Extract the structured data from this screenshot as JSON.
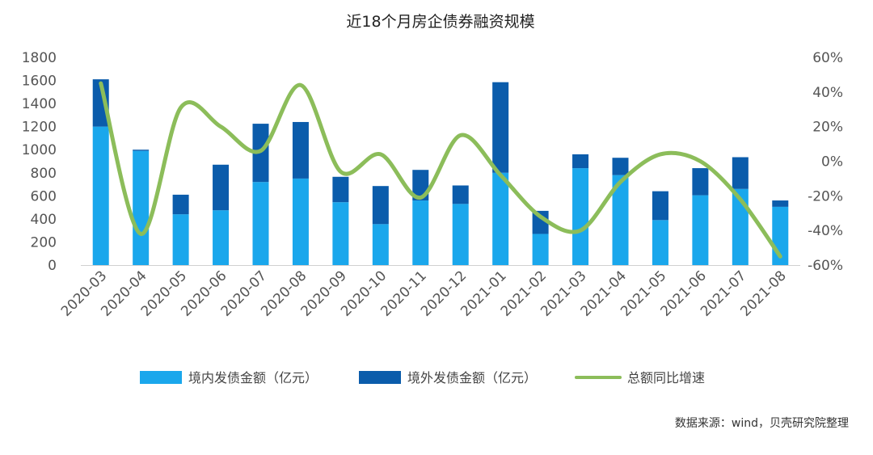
{
  "chart_data": {
    "type": "bar",
    "title": "近18个月房企债券融资规模",
    "categories": [
      "2020-03",
      "2020-04",
      "2020-05",
      "2020-06",
      "2020-07",
      "2020-08",
      "2020-09",
      "2020-10",
      "2020-11",
      "2020-12",
      "2021-01",
      "2021-02",
      "2021-03",
      "2021-04",
      "2021-05",
      "2021-06",
      "2021-07",
      "2021-08"
    ],
    "series": [
      {
        "name": "境内发债金额（亿元）",
        "type": "bar",
        "stack": "total",
        "axis": "left",
        "color": "#1aa7ec",
        "values": [
          1200,
          990,
          440,
          475,
          720,
          750,
          545,
          355,
          560,
          530,
          800,
          270,
          840,
          780,
          390,
          605,
          660,
          505
        ]
      },
      {
        "name": "境外发债金额（亿元）",
        "type": "bar",
        "stack": "total",
        "axis": "left",
        "color": "#0b5cab",
        "values": [
          410,
          10,
          170,
          395,
          505,
          490,
          220,
          330,
          265,
          160,
          785,
          200,
          120,
          150,
          250,
          235,
          275,
          55
        ]
      },
      {
        "name": "总额同比增速",
        "type": "line",
        "axis": "right",
        "color": "#8cbd5a",
        "values": [
          45,
          -42,
          31,
          20,
          6,
          44,
          -6,
          4,
          -21,
          15,
          -8,
          -32,
          -40,
          -12,
          4,
          0,
          -22,
          -55
        ]
      }
    ],
    "y_left": {
      "min": 0,
      "max": 1800,
      "ticks": [
        "0",
        "200",
        "400",
        "600",
        "800",
        "1000",
        "1200",
        "1400",
        "1600",
        "1800"
      ]
    },
    "y_right": {
      "min": -60,
      "max": 60,
      "ticks": [
        "-60%",
        "-40%",
        "-20%",
        "0%",
        "20%",
        "40%",
        "60%"
      ]
    },
    "legend_position": "bottom",
    "source": "数据来源：wind，贝壳研究院整理"
  }
}
